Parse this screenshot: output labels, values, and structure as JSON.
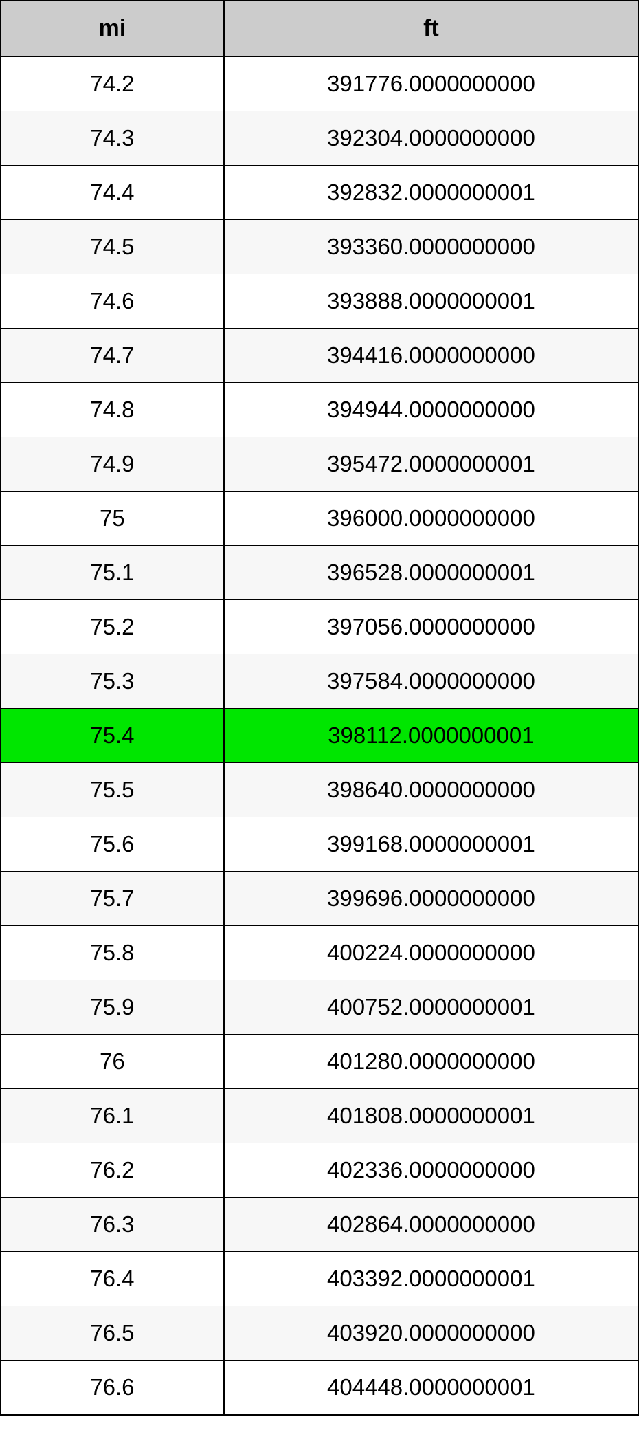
{
  "table": {
    "columns": [
      "mi",
      "ft"
    ],
    "header_bg": "#cccccc",
    "header_fontsize": 34,
    "cell_fontsize": 33,
    "border_color": "#000000",
    "row_bg_even": "#ffffff",
    "row_bg_odd": "#f7f7f7",
    "highlight_bg": "#00e600",
    "highlight_index": 12,
    "rows": [
      {
        "mi": "74.2",
        "ft": "391776.0000000000"
      },
      {
        "mi": "74.3",
        "ft": "392304.0000000000"
      },
      {
        "mi": "74.4",
        "ft": "392832.0000000001"
      },
      {
        "mi": "74.5",
        "ft": "393360.0000000000"
      },
      {
        "mi": "74.6",
        "ft": "393888.0000000001"
      },
      {
        "mi": "74.7",
        "ft": "394416.0000000000"
      },
      {
        "mi": "74.8",
        "ft": "394944.0000000000"
      },
      {
        "mi": "74.9",
        "ft": "395472.0000000001"
      },
      {
        "mi": "75",
        "ft": "396000.0000000000"
      },
      {
        "mi": "75.1",
        "ft": "396528.0000000001"
      },
      {
        "mi": "75.2",
        "ft": "397056.0000000000"
      },
      {
        "mi": "75.3",
        "ft": "397584.0000000000"
      },
      {
        "mi": "75.4",
        "ft": "398112.0000000001"
      },
      {
        "mi": "75.5",
        "ft": "398640.0000000000"
      },
      {
        "mi": "75.6",
        "ft": "399168.0000000001"
      },
      {
        "mi": "75.7",
        "ft": "399696.0000000000"
      },
      {
        "mi": "75.8",
        "ft": "400224.0000000000"
      },
      {
        "mi": "75.9",
        "ft": "400752.0000000001"
      },
      {
        "mi": "76",
        "ft": "401280.0000000000"
      },
      {
        "mi": "76.1",
        "ft": "401808.0000000001"
      },
      {
        "mi": "76.2",
        "ft": "402336.0000000000"
      },
      {
        "mi": "76.3",
        "ft": "402864.0000000000"
      },
      {
        "mi": "76.4",
        "ft": "403392.0000000001"
      },
      {
        "mi": "76.5",
        "ft": "403920.0000000000"
      },
      {
        "mi": "76.6",
        "ft": "404448.0000000001"
      }
    ]
  }
}
